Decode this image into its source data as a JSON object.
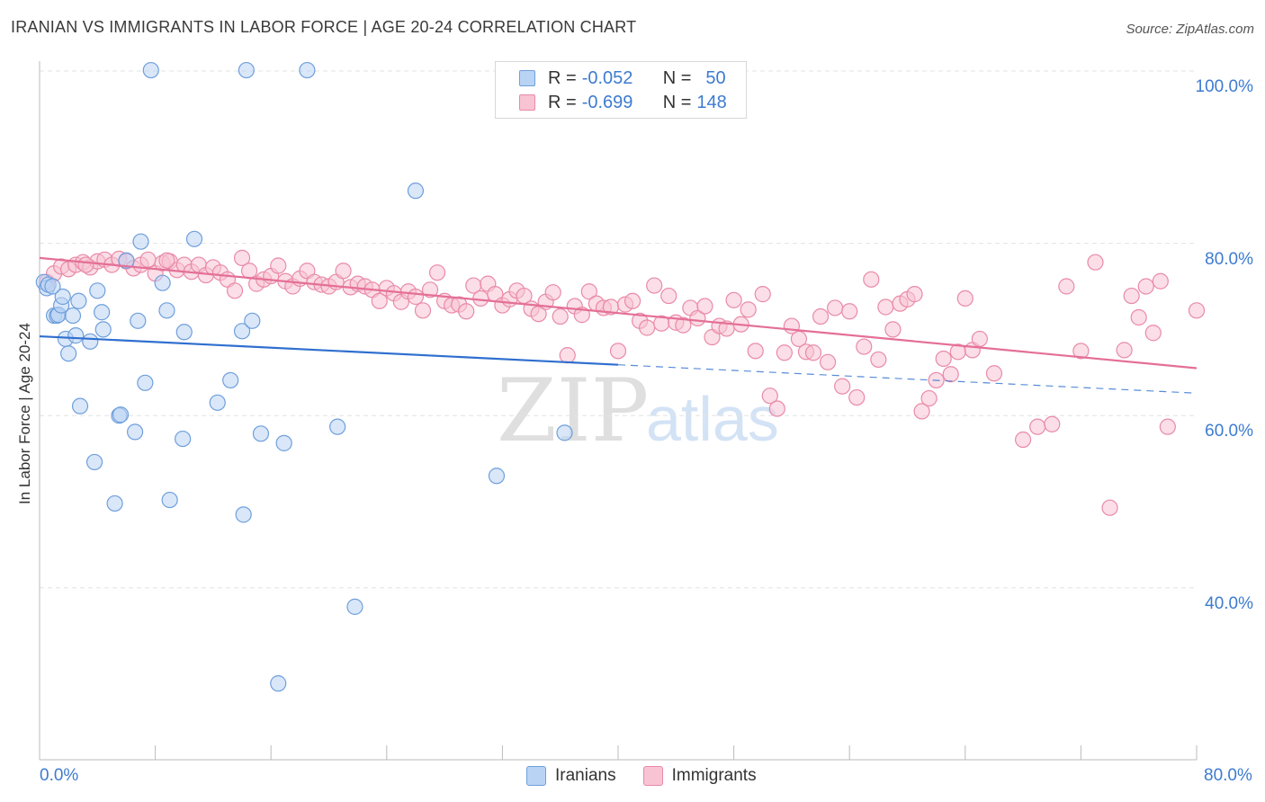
{
  "title": "IRANIAN VS IMMIGRANTS IN LABOR FORCE | AGE 20-24 CORRELATION CHART",
  "source": "Source: ZipAtlas.com",
  "watermark": {
    "zip": "ZIP",
    "atlas": "atlas"
  },
  "colors": {
    "iranians_fill": "#b9d3f4",
    "iranians_stroke": "#6f9fdc",
    "iranians_line": "#2f6fcf",
    "immigrants_fill": "#f8c3d3",
    "immigrants_stroke": "#e98aa8",
    "immigrants_line": "#e46f97",
    "tick_text": "#3d7bd0",
    "grid": "#e3e3e3"
  },
  "legend": {
    "rows": [
      {
        "r_label": "R =",
        "r_value": "-0.052",
        "n_label": "N =",
        "n_value": "50"
      },
      {
        "r_label": "R =",
        "r_value": "-0.699",
        "n_label": "N =",
        "n_value": "148"
      }
    ]
  },
  "bottom_legend": {
    "iranians": "Iranians",
    "immigrants": "Immigrants"
  },
  "chart_data": {
    "type": "scatter",
    "ylabel": "In Labor Force | Age 20-24",
    "xlim": [
      0,
      80
    ],
    "ylim": [
      20,
      105
    ],
    "x_ticks": [
      "0.0%",
      "80.0%"
    ],
    "y_ticks": [
      {
        "value": 100,
        "label": "100.0%"
      },
      {
        "value": 80,
        "label": "80.0%"
      },
      {
        "value": 60,
        "label": "60.0%"
      },
      {
        "value": 40,
        "label": "40.0%"
      }
    ],
    "grid": true,
    "legend_position": "top-center",
    "series": [
      {
        "name": "Iranians",
        "R": -0.052,
        "N": 50,
        "trend": {
          "x0": 0,
          "y0": 69.2,
          "x1": 40,
          "y1": 65.9,
          "dashed_to_x": 80,
          "dashed_y": 62.6
        },
        "points": [
          [
            0.3,
            75.5
          ],
          [
            0.5,
            74.8
          ],
          [
            0.6,
            75.2
          ],
          [
            1.0,
            71.6
          ],
          [
            1.2,
            71.6
          ],
          [
            1.3,
            71.7
          ],
          [
            1.5,
            72.8
          ],
          [
            1.6,
            73.8
          ],
          [
            1.8,
            68.9
          ],
          [
            2.0,
            67.2
          ],
          [
            2.7,
            73.3
          ],
          [
            2.8,
            61.1
          ],
          [
            3.5,
            68.6
          ],
          [
            3.8,
            54.6
          ],
          [
            4.0,
            74.5
          ],
          [
            4.3,
            72.0
          ],
          [
            4.4,
            70.0
          ],
          [
            5.2,
            49.8
          ],
          [
            5.5,
            60.0
          ],
          [
            5.6,
            60.1
          ],
          [
            6.0,
            78.0
          ],
          [
            6.6,
            58.1
          ],
          [
            6.8,
            71.0
          ],
          [
            7.0,
            80.2
          ],
          [
            7.3,
            63.8
          ],
          [
            7.7,
            100.1
          ],
          [
            8.5,
            75.4
          ],
          [
            8.8,
            72.2
          ],
          [
            9.0,
            50.2
          ],
          [
            9.9,
            57.3
          ],
          [
            10.0,
            69.7
          ],
          [
            10.7,
            80.5
          ],
          [
            12.3,
            61.5
          ],
          [
            13.2,
            64.1
          ],
          [
            14.0,
            69.8
          ],
          [
            14.1,
            48.5
          ],
          [
            14.3,
            100.1
          ],
          [
            14.7,
            71.0
          ],
          [
            15.3,
            57.9
          ],
          [
            16.5,
            28.9
          ],
          [
            16.9,
            56.8
          ],
          [
            18.5,
            100.1
          ],
          [
            20.6,
            58.7
          ],
          [
            21.8,
            37.8
          ],
          [
            26.0,
            86.1
          ],
          [
            31.6,
            53.0
          ],
          [
            36.3,
            58.0
          ],
          [
            2.3,
            71.6
          ],
          [
            2.5,
            69.3
          ],
          [
            0.9,
            75.0
          ]
        ]
      },
      {
        "name": "Immigrants",
        "R": -0.699,
        "N": 148,
        "trend": {
          "x0": 0,
          "y0": 78.3,
          "x1": 80,
          "y1": 65.5
        },
        "points": [
          [
            0.5,
            75.5
          ],
          [
            1.0,
            76.5
          ],
          [
            1.5,
            77.3
          ],
          [
            2.0,
            77.0
          ],
          [
            2.5,
            77.5
          ],
          [
            3.0,
            77.8
          ],
          [
            3.5,
            77.2
          ],
          [
            4.0,
            77.9
          ],
          [
            4.5,
            78.1
          ],
          [
            5.0,
            77.5
          ],
          [
            5.5,
            78.2
          ],
          [
            6.0,
            77.9
          ],
          [
            6.5,
            77.1
          ],
          [
            7.0,
            77.5
          ],
          [
            7.5,
            78.1
          ],
          [
            8.0,
            76.5
          ],
          [
            8.5,
            77.7
          ],
          [
            9.0,
            77.9
          ],
          [
            9.5,
            76.9
          ],
          [
            10.0,
            77.5
          ],
          [
            10.5,
            76.7
          ],
          [
            11.0,
            77.5
          ],
          [
            11.5,
            76.3
          ],
          [
            12.0,
            77.2
          ],
          [
            12.5,
            76.6
          ],
          [
            13.0,
            75.8
          ],
          [
            13.5,
            74.5
          ],
          [
            14.0,
            78.3
          ],
          [
            14.5,
            76.8
          ],
          [
            15.0,
            75.3
          ],
          [
            15.5,
            75.8
          ],
          [
            16.0,
            76.2
          ],
          [
            16.5,
            77.4
          ],
          [
            17.0,
            75.6
          ],
          [
            17.5,
            75.0
          ],
          [
            18.0,
            75.9
          ],
          [
            18.5,
            76.8
          ],
          [
            19.0,
            75.5
          ],
          [
            19.5,
            75.2
          ],
          [
            20.0,
            75.0
          ],
          [
            20.5,
            75.5
          ],
          [
            21.0,
            76.8
          ],
          [
            21.5,
            74.9
          ],
          [
            22.0,
            75.3
          ],
          [
            22.5,
            75.0
          ],
          [
            23.0,
            74.6
          ],
          [
            23.5,
            73.3
          ],
          [
            24.0,
            74.8
          ],
          [
            24.5,
            74.2
          ],
          [
            25.0,
            73.2
          ],
          [
            25.5,
            74.4
          ],
          [
            26.0,
            73.8
          ],
          [
            26.5,
            72.2
          ],
          [
            27.0,
            74.6
          ],
          [
            27.5,
            76.6
          ],
          [
            28.0,
            73.3
          ],
          [
            28.5,
            72.8
          ],
          [
            29.0,
            72.9
          ],
          [
            29.5,
            72.1
          ],
          [
            30.0,
            75.1
          ],
          [
            30.5,
            73.6
          ],
          [
            31.0,
            75.3
          ],
          [
            31.5,
            74.1
          ],
          [
            32.0,
            72.8
          ],
          [
            32.5,
            73.5
          ],
          [
            33.0,
            74.5
          ],
          [
            33.5,
            73.9
          ],
          [
            34.0,
            72.4
          ],
          [
            34.5,
            71.8
          ],
          [
            35.0,
            73.2
          ],
          [
            35.5,
            74.3
          ],
          [
            36.0,
            71.5
          ],
          [
            36.5,
            67.0
          ],
          [
            37.0,
            72.7
          ],
          [
            37.5,
            71.7
          ],
          [
            38.0,
            74.4
          ],
          [
            38.5,
            73.0
          ],
          [
            39.0,
            72.5
          ],
          [
            39.5,
            72.6
          ],
          [
            40.0,
            67.5
          ],
          [
            40.5,
            72.9
          ],
          [
            41.0,
            73.3
          ],
          [
            41.5,
            71.0
          ],
          [
            42.0,
            70.2
          ],
          [
            42.5,
            75.1
          ],
          [
            43.0,
            70.7
          ],
          [
            43.5,
            73.9
          ],
          [
            44.0,
            70.8
          ],
          [
            44.5,
            70.5
          ],
          [
            45.0,
            72.5
          ],
          [
            45.5,
            71.3
          ],
          [
            46.0,
            72.7
          ],
          [
            46.5,
            69.1
          ],
          [
            47.0,
            70.4
          ],
          [
            47.5,
            70.1
          ],
          [
            48.0,
            73.4
          ],
          [
            48.5,
            70.6
          ],
          [
            49.0,
            72.3
          ],
          [
            49.5,
            67.5
          ],
          [
            50.0,
            74.1
          ],
          [
            50.5,
            62.3
          ],
          [
            51.0,
            60.8
          ],
          [
            51.5,
            67.3
          ],
          [
            52.0,
            70.4
          ],
          [
            52.5,
            68.9
          ],
          [
            53.0,
            67.4
          ],
          [
            53.5,
            67.3
          ],
          [
            54.0,
            71.5
          ],
          [
            54.5,
            66.2
          ],
          [
            55.0,
            72.5
          ],
          [
            55.5,
            63.4
          ],
          [
            56.0,
            72.1
          ],
          [
            56.5,
            62.1
          ],
          [
            57.0,
            68.0
          ],
          [
            57.5,
            75.8
          ],
          [
            58.0,
            66.5
          ],
          [
            58.5,
            72.6
          ],
          [
            59.0,
            70.0
          ],
          [
            59.5,
            73.0
          ],
          [
            60.0,
            73.5
          ],
          [
            60.5,
            74.1
          ],
          [
            61.0,
            60.5
          ],
          [
            61.5,
            62.0
          ],
          [
            62.0,
            64.1
          ],
          [
            62.5,
            66.6
          ],
          [
            63.0,
            64.8
          ],
          [
            63.5,
            67.4
          ],
          [
            64.0,
            73.6
          ],
          [
            64.5,
            67.6
          ],
          [
            65.0,
            68.9
          ],
          [
            66.0,
            64.9
          ],
          [
            68.0,
            57.2
          ],
          [
            69.0,
            58.7
          ],
          [
            70.0,
            59.0
          ],
          [
            71.0,
            75.0
          ],
          [
            72.0,
            67.5
          ],
          [
            73.0,
            77.8
          ],
          [
            74.0,
            49.3
          ],
          [
            75.0,
            67.6
          ],
          [
            75.5,
            73.9
          ],
          [
            76.0,
            71.4
          ],
          [
            76.5,
            75.0
          ],
          [
            77.0,
            69.6
          ],
          [
            77.5,
            75.6
          ],
          [
            78.0,
            58.7
          ],
          [
            80.0,
            72.2
          ],
          [
            8.8,
            78.0
          ],
          [
            3.2,
            77.5
          ]
        ]
      }
    ]
  }
}
